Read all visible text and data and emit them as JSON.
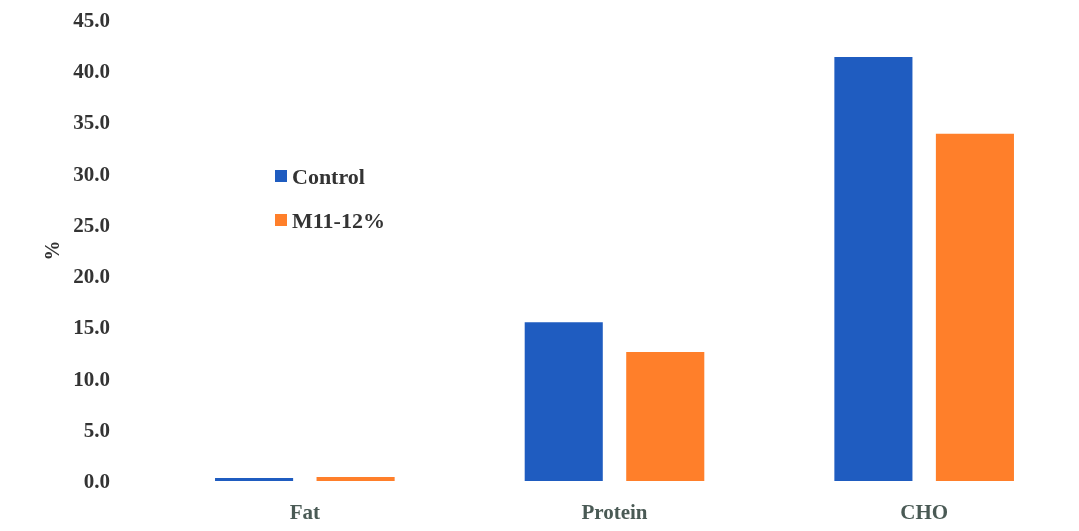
{
  "chart_data": {
    "type": "bar",
    "ylabel": "%",
    "categories": [
      "Fat",
      "Protein",
      "CHO"
    ],
    "series": [
      {
        "name": "Control",
        "color": "#1f5cc0",
        "values": [
          0.3,
          15.5,
          41.4
        ]
      },
      {
        "name": "M11-12%",
        "color": "#ff7f2a",
        "values": [
          0.4,
          12.6,
          33.9
        ]
      }
    ],
    "ylim": [
      0,
      45
    ],
    "yticks": [
      {
        "value": 0,
        "label": "0.0"
      },
      {
        "value": 5,
        "label": "5.0"
      },
      {
        "value": 10,
        "label": "10.0"
      },
      {
        "value": 15,
        "label": "15.0"
      },
      {
        "value": 20,
        "label": "20.0"
      },
      {
        "value": 25,
        "label": "25.0"
      },
      {
        "value": 30,
        "label": "30.0"
      },
      {
        "value": 35,
        "label": "35.0"
      },
      {
        "value": 40,
        "label": "40.0"
      },
      {
        "value": 45,
        "label": "45.0"
      }
    ],
    "grid": false,
    "legend": "left"
  }
}
